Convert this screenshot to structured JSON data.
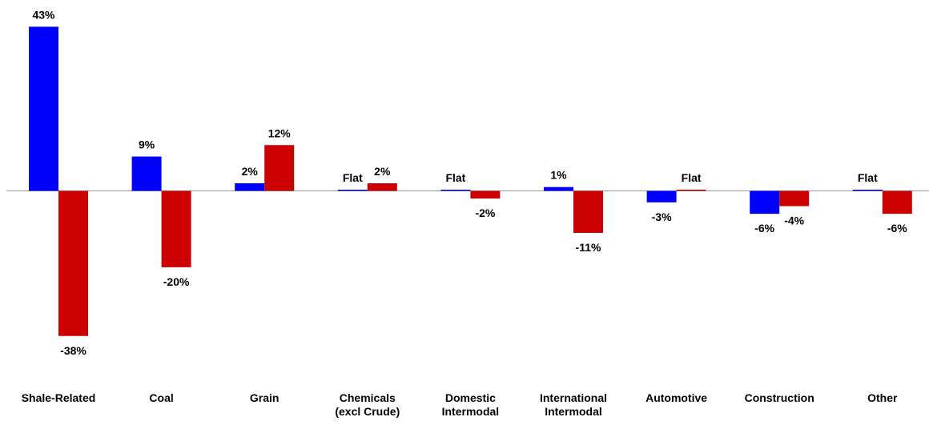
{
  "chart_data": {
    "type": "bar",
    "categories": [
      [
        "Shale-Related"
      ],
      [
        "Coal"
      ],
      [
        "Grain"
      ],
      [
        "Chemicals",
        "(excl Crude)"
      ],
      [
        "Domestic",
        "Intermodal"
      ],
      [
        "International",
        "Intermodal"
      ],
      [
        "Automotive"
      ],
      [
        "Construction"
      ],
      [
        "Other"
      ]
    ],
    "series": [
      {
        "color": "#0000FF",
        "values": [
          43,
          9,
          2,
          0,
          0,
          1,
          -3,
          -6,
          0
        ],
        "labels": [
          "43%",
          "9%",
          "2%",
          "Flat",
          "Flat",
          "1%",
          "-3%",
          "-6%",
          "Flat"
        ]
      },
      {
        "color": "#CC0000",
        "values": [
          -38,
          -20,
          12,
          2,
          -2,
          -11,
          0,
          -4,
          -6
        ],
        "labels": [
          "-38%",
          "-20%",
          "12%",
          "2%",
          "-2%",
          "-11%",
          "Flat",
          "-4%",
          "-6%"
        ]
      }
    ],
    "ylim": [
      -43,
      45
    ],
    "grid": false,
    "legend": "none",
    "zero_line_color": "#999999"
  }
}
